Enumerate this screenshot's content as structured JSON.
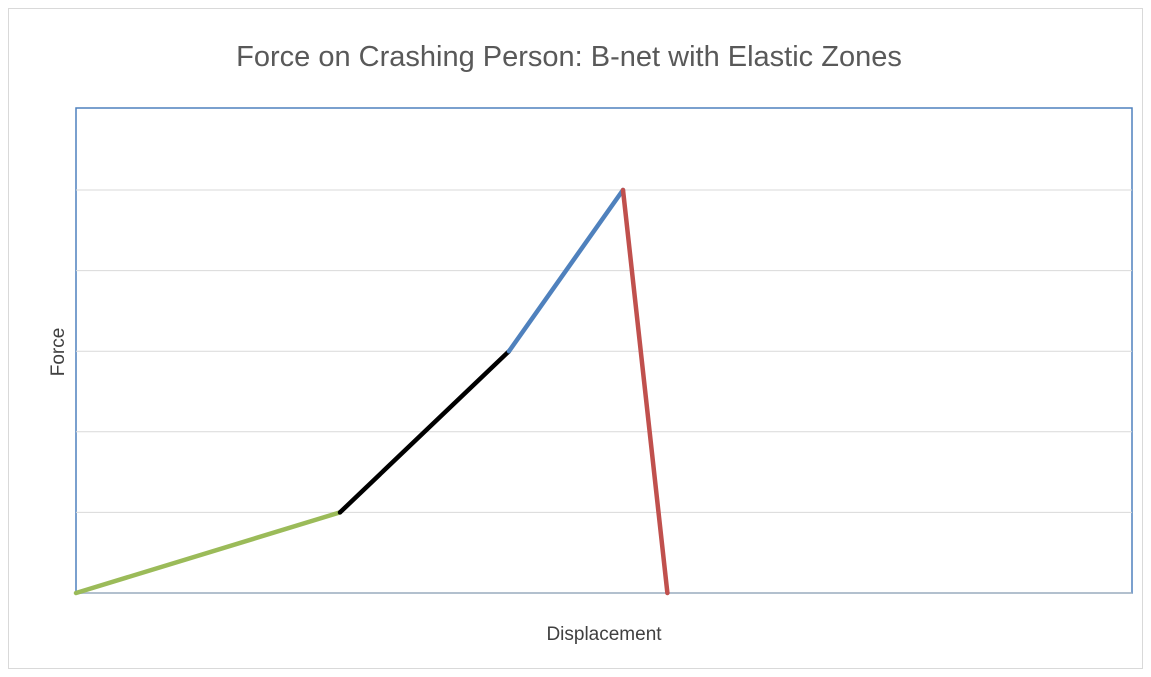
{
  "chart_data": {
    "type": "line",
    "title": "Force on Crashing Person: B-net with Elastic Zones",
    "xlabel": "Displacement",
    "ylabel": "Force",
    "xlim": [
      0,
      1
    ],
    "ylim": [
      0,
      5
    ],
    "grid": true,
    "x_tick_labels": false,
    "y_tick_labels": false,
    "legend": "none",
    "series": [
      {
        "color": "#9BBB59",
        "x": [
          0,
          0.25
        ],
        "y": [
          0,
          1
        ]
      },
      {
        "color": "#000000",
        "x": [
          0.25,
          0.41
        ],
        "y": [
          1,
          3
        ]
      },
      {
        "color": "#4F81BD",
        "x": [
          0.41,
          0.518
        ],
        "y": [
          3,
          5
        ]
      },
      {
        "color": "#C0504D",
        "x": [
          0.518,
          0.56
        ],
        "y": [
          5,
          0
        ]
      }
    ]
  },
  "colors": {
    "plot_border": "#4F81BD",
    "gridline": "#d9d9d9",
    "axis_line": "#bfbfbf"
  }
}
